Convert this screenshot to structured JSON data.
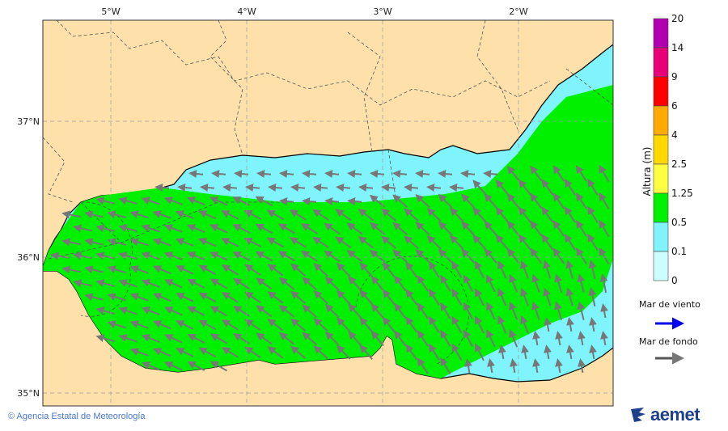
{
  "map": {
    "lon_labels": [
      "5°W",
      "4°W",
      "3°W",
      "2°W"
    ],
    "lat_labels": [
      "37°N",
      "36°N",
      "35°N"
    ],
    "colors": {
      "land": "#fde0aa",
      "sea_low": "#80f4fc",
      "sea_mid": "#00f000",
      "swell_arrow": "#777777",
      "wind_arrow": "#0000ee"
    }
  },
  "colorbar": {
    "title": "Altura (m)",
    "ticks": [
      "20",
      "14",
      "9",
      "6",
      "4",
      "2.5",
      "1.25",
      "0.5",
      "0.1",
      "0"
    ],
    "colors": [
      "#b000b0",
      "#e8007a",
      "#ff0000",
      "#ffaa00",
      "#ffd800",
      "#ffff40",
      "#00f000",
      "#80f4fc",
      "#ccffff"
    ]
  },
  "legend": {
    "wind_sea": "Mar de viento",
    "swell": "Mar de fondo"
  },
  "footer": {
    "copyright": "© Agencia Estatal de Meteorología",
    "logo_text": "aemet"
  }
}
